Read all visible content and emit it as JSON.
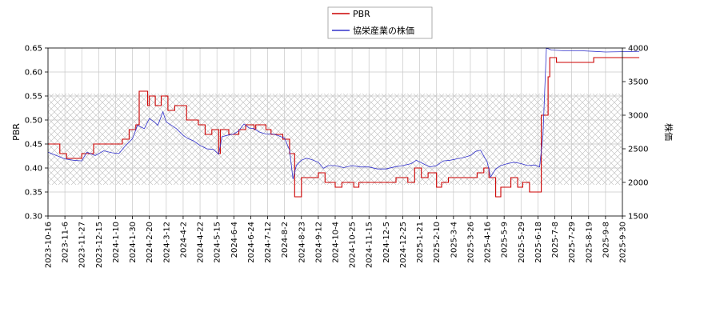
{
  "chart_data": {
    "type": "line",
    "grid": true,
    "legend_position": "top-center",
    "x_tick_labels": [
      "2023-10-16",
      "2023-11-6",
      "2023-11-27",
      "2023-12-15",
      "2024-1-10",
      "2024-1-30",
      "2024-2-20",
      "2024-3-12",
      "2024-4-2",
      "2024-4-22",
      "2024-5-15",
      "2024-6-4",
      "2024-6-24",
      "2024-7-12",
      "2024-8-2",
      "2024-8-23",
      "2024-9-12",
      "2024-10-4",
      "2024-10-25",
      "2024-11-15",
      "2024-12-5",
      "2024-12-25",
      "2025-1-21",
      "2025-2-10",
      "2025-3-4",
      "2025-3-26",
      "2025-4-16",
      "2025-5-9",
      "2025-5-29",
      "2025-6-18",
      "2025-7-8",
      "2025-7-29",
      "2025-8-19",
      "2025-9-8",
      "2025-9-30"
    ],
    "y_left": {
      "label": "PBR",
      "ticks": [
        "0.30",
        "0.35",
        "0.40",
        "0.45",
        "0.50",
        "0.55",
        "0.60",
        "0.65"
      ],
      "range": [
        0.3,
        0.65
      ]
    },
    "y_right": {
      "label": "株価",
      "ticks": [
        "1500",
        "2000",
        "2500",
        "3000",
        "3500",
        "4000"
      ],
      "range": [
        1500,
        4000
      ]
    },
    "shaded_band": {
      "axis": "left",
      "from": 0.365,
      "to": 0.555
    },
    "series": [
      {
        "name": "PBR",
        "axis": "left",
        "color": "#cc0000",
        "step": true,
        "points": [
          [
            0,
            0.45
          ],
          [
            0.6,
            0.45
          ],
          [
            0.7,
            0.43
          ],
          [
            1.0,
            0.43
          ],
          [
            1.1,
            0.42
          ],
          [
            1.9,
            0.42
          ],
          [
            2.0,
            0.43
          ],
          [
            2.6,
            0.43
          ],
          [
            2.7,
            0.45
          ],
          [
            4.3,
            0.45
          ],
          [
            4.4,
            0.46
          ],
          [
            4.7,
            0.46
          ],
          [
            4.8,
            0.48
          ],
          [
            5.0,
            0.48
          ],
          [
            5.2,
            0.49
          ],
          [
            5.4,
            0.56
          ],
          [
            5.8,
            0.56
          ],
          [
            5.9,
            0.53
          ],
          [
            6.0,
            0.55
          ],
          [
            6.3,
            0.55
          ],
          [
            6.35,
            0.53
          ],
          [
            6.6,
            0.53
          ],
          [
            6.7,
            0.55
          ],
          [
            7.0,
            0.55
          ],
          [
            7.1,
            0.52
          ],
          [
            7.4,
            0.52
          ],
          [
            7.5,
            0.53
          ],
          [
            8.1,
            0.53
          ],
          [
            8.2,
            0.5
          ],
          [
            8.8,
            0.5
          ],
          [
            8.9,
            0.49
          ],
          [
            9.2,
            0.49
          ],
          [
            9.3,
            0.47
          ],
          [
            9.6,
            0.47
          ],
          [
            9.7,
            0.48
          ],
          [
            10.0,
            0.48
          ],
          [
            10.1,
            0.43
          ],
          [
            10.2,
            0.48
          ],
          [
            10.6,
            0.48
          ],
          [
            10.7,
            0.47
          ],
          [
            11.2,
            0.47
          ],
          [
            11.3,
            0.48
          ],
          [
            11.6,
            0.48
          ],
          [
            11.7,
            0.49
          ],
          [
            12.1,
            0.49
          ],
          [
            12.2,
            0.48
          ],
          [
            12.3,
            0.49
          ],
          [
            12.8,
            0.49
          ],
          [
            12.9,
            0.48
          ],
          [
            13.1,
            0.48
          ],
          [
            13.2,
            0.47
          ],
          [
            13.8,
            0.47
          ],
          [
            13.9,
            0.46
          ],
          [
            14.2,
            0.46
          ],
          [
            14.3,
            0.43
          ],
          [
            14.5,
            0.43
          ],
          [
            14.6,
            0.34
          ],
          [
            14.9,
            0.34
          ],
          [
            15.0,
            0.38
          ],
          [
            15.9,
            0.38
          ],
          [
            16.0,
            0.39
          ],
          [
            16.3,
            0.39
          ],
          [
            16.4,
            0.37
          ],
          [
            16.9,
            0.37
          ],
          [
            17.0,
            0.36
          ],
          [
            17.3,
            0.36
          ],
          [
            17.4,
            0.37
          ],
          [
            18.0,
            0.37
          ],
          [
            18.1,
            0.36
          ],
          [
            18.3,
            0.36
          ],
          [
            18.4,
            0.37
          ],
          [
            20.5,
            0.37
          ],
          [
            20.6,
            0.38
          ],
          [
            21.2,
            0.38
          ],
          [
            21.3,
            0.37
          ],
          [
            21.6,
            0.37
          ],
          [
            21.7,
            0.4
          ],
          [
            22.0,
            0.4
          ],
          [
            22.1,
            0.38
          ],
          [
            22.4,
            0.38
          ],
          [
            22.5,
            0.39
          ],
          [
            22.9,
            0.39
          ],
          [
            23.0,
            0.36
          ],
          [
            23.2,
            0.36
          ],
          [
            23.3,
            0.37
          ],
          [
            23.6,
            0.37
          ],
          [
            23.7,
            0.38
          ],
          [
            25.3,
            0.38
          ],
          [
            25.4,
            0.39
          ],
          [
            25.7,
            0.39
          ],
          [
            25.8,
            0.4
          ],
          [
            26.0,
            0.4
          ],
          [
            26.1,
            0.38
          ],
          [
            26.4,
            0.38
          ],
          [
            26.5,
            0.34
          ],
          [
            26.7,
            0.34
          ],
          [
            26.8,
            0.36
          ],
          [
            27.3,
            0.36
          ],
          [
            27.4,
            0.38
          ],
          [
            27.7,
            0.38
          ],
          [
            27.8,
            0.36
          ],
          [
            28.0,
            0.36
          ],
          [
            28.1,
            0.37
          ],
          [
            28.4,
            0.37
          ],
          [
            28.5,
            0.35
          ],
          [
            29.1,
            0.35
          ],
          [
            29.2,
            0.51
          ],
          [
            29.5,
            0.51
          ],
          [
            29.6,
            0.59
          ],
          [
            29.7,
            0.63
          ],
          [
            30.0,
            0.63
          ],
          [
            30.1,
            0.62
          ],
          [
            32.2,
            0.62
          ],
          [
            32.3,
            0.63
          ],
          [
            35.0,
            0.63
          ]
        ]
      },
      {
        "name": "協栄産業の株価",
        "axis": "right",
        "color": "#3333cc",
        "step": false,
        "points": [
          [
            0,
            2450
          ],
          [
            0.5,
            2400
          ],
          [
            1.0,
            2350
          ],
          [
            1.5,
            2330
          ],
          [
            2.0,
            2320
          ],
          [
            2.3,
            2450
          ],
          [
            2.8,
            2400
          ],
          [
            3.3,
            2470
          ],
          [
            3.8,
            2440
          ],
          [
            4.2,
            2430
          ],
          [
            4.6,
            2550
          ],
          [
            5.0,
            2650
          ],
          [
            5.3,
            2850
          ],
          [
            5.7,
            2800
          ],
          [
            6.0,
            2950
          ],
          [
            6.3,
            2900
          ],
          [
            6.5,
            2850
          ],
          [
            6.8,
            3050
          ],
          [
            7.0,
            2900
          ],
          [
            7.3,
            2850
          ],
          [
            7.6,
            2800
          ],
          [
            8.0,
            2700
          ],
          [
            8.3,
            2650
          ],
          [
            8.6,
            2620
          ],
          [
            9.0,
            2550
          ],
          [
            9.4,
            2500
          ],
          [
            9.8,
            2490
          ],
          [
            10.1,
            2420
          ],
          [
            10.3,
            2680
          ],
          [
            10.6,
            2700
          ],
          [
            11.0,
            2720
          ],
          [
            11.3,
            2770
          ],
          [
            11.6,
            2870
          ],
          [
            11.9,
            2810
          ],
          [
            12.2,
            2800
          ],
          [
            12.5,
            2750
          ],
          [
            12.9,
            2720
          ],
          [
            13.3,
            2720
          ],
          [
            13.6,
            2700
          ],
          [
            14.0,
            2660
          ],
          [
            14.3,
            2480
          ],
          [
            14.5,
            2050
          ],
          [
            14.7,
            2250
          ],
          [
            15.0,
            2330
          ],
          [
            15.3,
            2360
          ],
          [
            15.6,
            2340
          ],
          [
            16.0,
            2300
          ],
          [
            16.3,
            2210
          ],
          [
            16.6,
            2250
          ],
          [
            17.0,
            2250
          ],
          [
            17.5,
            2220
          ],
          [
            18.0,
            2250
          ],
          [
            18.5,
            2230
          ],
          [
            19.0,
            2230
          ],
          [
            19.5,
            2200
          ],
          [
            20.0,
            2200
          ],
          [
            20.5,
            2230
          ],
          [
            21.0,
            2250
          ],
          [
            21.5,
            2280
          ],
          [
            21.8,
            2330
          ],
          [
            22.2,
            2280
          ],
          [
            22.6,
            2230
          ],
          [
            23.0,
            2250
          ],
          [
            23.4,
            2320
          ],
          [
            23.8,
            2330
          ],
          [
            24.2,
            2350
          ],
          [
            24.6,
            2370
          ],
          [
            25.0,
            2400
          ],
          [
            25.3,
            2460
          ],
          [
            25.6,
            2480
          ],
          [
            26.0,
            2300
          ],
          [
            26.2,
            2080
          ],
          [
            26.5,
            2200
          ],
          [
            26.8,
            2250
          ],
          [
            27.2,
            2280
          ],
          [
            27.6,
            2300
          ],
          [
            28.0,
            2280
          ],
          [
            28.4,
            2250
          ],
          [
            28.8,
            2260
          ],
          [
            29.1,
            2230
          ],
          [
            29.3,
            2700
          ],
          [
            29.5,
            4000
          ],
          [
            29.8,
            3970
          ],
          [
            30.5,
            3960
          ],
          [
            31.5,
            3960
          ],
          [
            32.3,
            3950
          ],
          [
            33.0,
            3940
          ],
          [
            34.0,
            3945
          ],
          [
            35.0,
            3950
          ]
        ]
      }
    ]
  }
}
